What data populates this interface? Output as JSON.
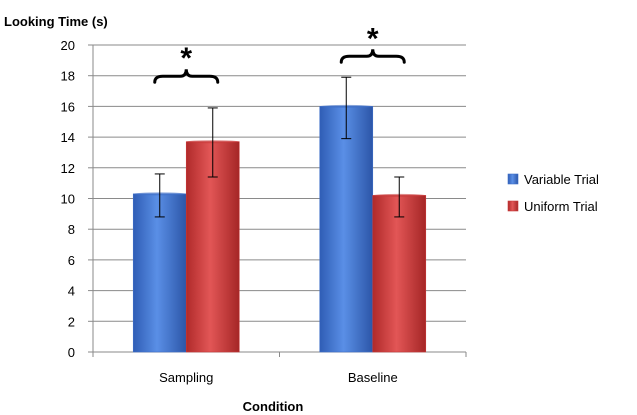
{
  "chart_data": {
    "type": "bar",
    "title": "",
    "ylabel": "Looking Time  (s)",
    "xlabel": "Condition",
    "categories": [
      "Sampling",
      "Baseline"
    ],
    "ylim": [
      0,
      20
    ],
    "yticks": [
      0,
      2,
      4,
      6,
      8,
      10,
      12,
      14,
      16,
      18,
      20
    ],
    "grid": true,
    "legend_position": "right",
    "series": [
      {
        "name": "Variable Trial",
        "color": "#3f6fc8",
        "values": [
          10.3,
          16.0
        ],
        "error": [
          [
            8.8,
            11.6
          ],
          [
            13.9,
            17.9
          ]
        ]
      },
      {
        "name": "Uniform Trial",
        "color": "#c83a3a",
        "values": [
          13.7,
          10.2
        ],
        "error": [
          [
            11.4,
            15.9
          ],
          [
            8.8,
            11.4
          ]
        ]
      }
    ],
    "annotations": [
      {
        "category": "Sampling",
        "text": "*",
        "brace_y": 17.9
      },
      {
        "category": "Baseline",
        "text": "*",
        "brace_y": 19.2
      }
    ]
  }
}
